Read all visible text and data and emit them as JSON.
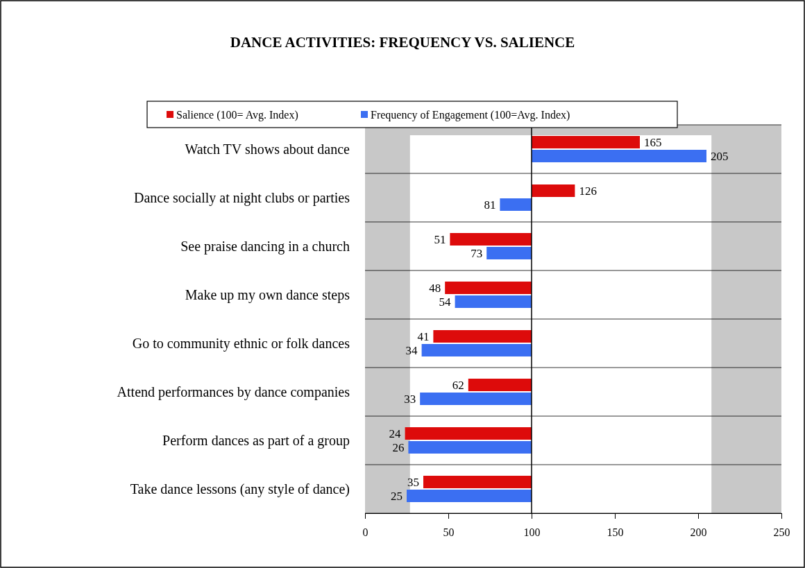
{
  "chart_data": {
    "type": "bar",
    "orientation": "horizontal",
    "title": "DANCE ACTIVITIES:  FREQUENCY VS. SALIENCE",
    "categories": [
      "Watch TV shows about dance",
      "Dance socially at night clubs or parties",
      "See praise dancing in a church",
      "Make up my own dance steps",
      "Go to community ethnic or folk dances",
      "Attend performances by dance companies",
      "Perform dances as part of a group",
      "Take dance lessons (any style of dance)"
    ],
    "series": [
      {
        "name": "Salience (100= Avg. Index)",
        "color": "#dd0b0b",
        "base": [
          100,
          100,
          100,
          100,
          100,
          100,
          100,
          100
        ],
        "values": [
          65,
          26,
          -49,
          -52,
          -59,
          -38,
          -76,
          -65
        ],
        "value_labels": [
          "165",
          "126",
          "51",
          "48",
          "41",
          "62",
          "24",
          "35"
        ]
      },
      {
        "name": "Frequency of Engagement (100=Avg.  Index)",
        "color": "#3b6ff2",
        "base": [
          100,
          100,
          100,
          100,
          100,
          100,
          100,
          100
        ],
        "values": [
          105,
          -19,
          -27,
          -46,
          -66,
          -67,
          -74,
          -75
        ],
        "value_labels": [
          "205",
          "81",
          "73",
          "54",
          "34",
          "33",
          "26",
          "25"
        ]
      }
    ],
    "xlim": [
      0,
      250
    ],
    "xticks": [
      0,
      50,
      100,
      150,
      200,
      250
    ],
    "bands": [
      {
        "axis": "x",
        "from": 27,
        "to": 208,
        "color": "#ffffff"
      }
    ],
    "ref_lines": [
      {
        "axis": "x",
        "value": 100,
        "color": "#000000"
      }
    ],
    "grid": false,
    "legend": "top"
  }
}
